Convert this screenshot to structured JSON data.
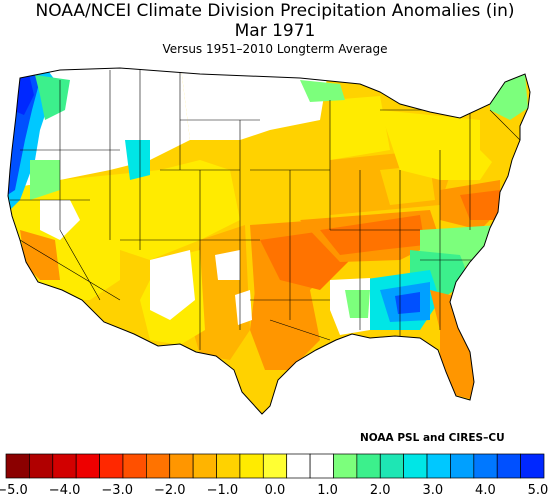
{
  "header": {
    "title": "NOAA/NCEI Climate Division Precipitation Anomalies (in)",
    "date": "Mar 1971",
    "subtitle": "Versus 1951–2010 Longterm Average"
  },
  "credit": "NOAA PSL and CIRES–CU",
  "legend": {
    "colors": [
      "#8b0000",
      "#b00000",
      "#d20000",
      "#ee0000",
      "#ff2800",
      "#ff5000",
      "#ff7300",
      "#ff9600",
      "#ffb400",
      "#ffd200",
      "#ffeb00",
      "#ffff33",
      "#ffffff",
      "#ffffff",
      "#7cff7c",
      "#3cf08c",
      "#1ee6b4",
      "#00e6e6",
      "#00c8ff",
      "#00a0ff",
      "#0078ff",
      "#0050ff",
      "#0028ff"
    ],
    "ticks": [
      "−5.0",
      "−4.0",
      "−3.0",
      "−2.0",
      "−1.0",
      "0.0",
      "1.0",
      "2.0",
      "3.0",
      "4.0",
      "5.0"
    ],
    "tick_values": [
      -5,
      -4,
      -3,
      -2,
      -1,
      0,
      1,
      2,
      3,
      4,
      5
    ]
  }
}
